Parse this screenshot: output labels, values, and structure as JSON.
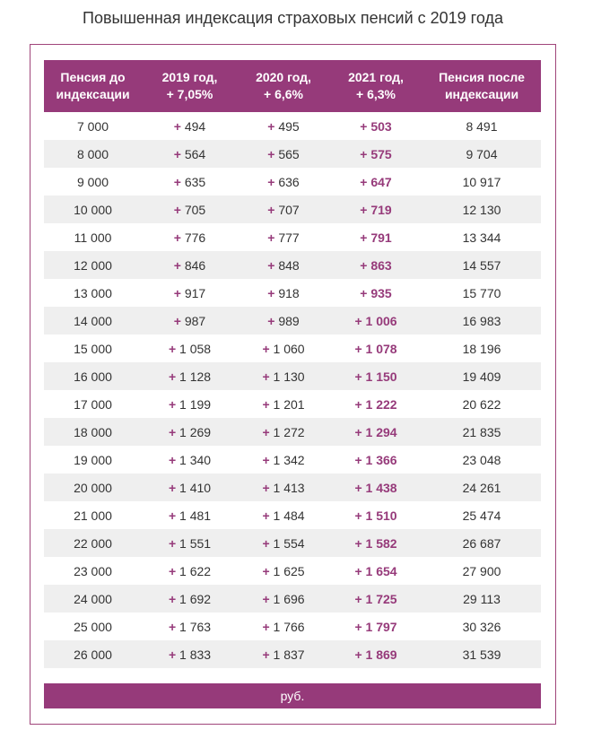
{
  "title": "Повышенная индексация страховых пенсий с 2019 года",
  "accent_color": "#963a7a",
  "headers": [
    "Пенсия до\nиндексации",
    "2019 год,\n+ 7,05%",
    "2020 год,\n+ 6,6%",
    "2021 год,\n+ 6,3%",
    "Пенсия после\nиндексации"
  ],
  "plus_sign": "+",
  "rows": [
    [
      "7 000",
      "494",
      "495",
      "503",
      "8 491"
    ],
    [
      "8 000",
      "564",
      "565",
      "575",
      "9 704"
    ],
    [
      "9 000",
      "635",
      "636",
      "647",
      "10 917"
    ],
    [
      "10 000",
      "705",
      "707",
      "719",
      "12 130"
    ],
    [
      "11 000",
      "776",
      "777",
      "791",
      "13 344"
    ],
    [
      "12 000",
      "846",
      "848",
      "863",
      "14 557"
    ],
    [
      "13 000",
      "917",
      "918",
      "935",
      "15 770"
    ],
    [
      "14 000",
      "987",
      "989",
      "1 006",
      "16 983"
    ],
    [
      "15 000",
      "1 058",
      "1 060",
      "1 078",
      "18 196"
    ],
    [
      "16 000",
      "1 128",
      "1 130",
      "1 150",
      "19 409"
    ],
    [
      "17 000",
      "1 199",
      "1 201",
      "1 222",
      "20 622"
    ],
    [
      "18 000",
      "1 269",
      "1 272",
      "1 294",
      "21 835"
    ],
    [
      "19 000",
      "1 340",
      "1 342",
      "1 366",
      "23 048"
    ],
    [
      "20 000",
      "1 410",
      "1 413",
      "1 438",
      "24 261"
    ],
    [
      "21 000",
      "1 481",
      "1 484",
      "1 510",
      "25 474"
    ],
    [
      "22 000",
      "1 551",
      "1 554",
      "1 582",
      "26 687"
    ],
    [
      "23 000",
      "1 622",
      "1 625",
      "1 654",
      "27 900"
    ],
    [
      "24 000",
      "1 692",
      "1 696",
      "1 725",
      "29 113"
    ],
    [
      "25 000",
      "1 763",
      "1 766",
      "1 797",
      "30 326"
    ],
    [
      "26 000",
      "1 833",
      "1 837",
      "1 869",
      "31 539"
    ]
  ],
  "footer": "руб."
}
